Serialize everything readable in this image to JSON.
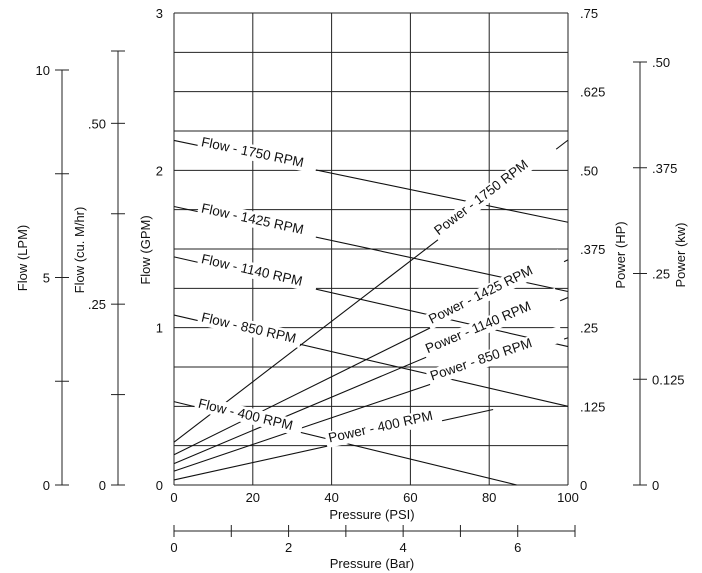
{
  "chart_data": {
    "type": "line",
    "xlabel": "Pressure (PSI)",
    "x2label": "Pressure (Bar)",
    "xlim": [
      0,
      100
    ],
    "x_ticks": [
      "0",
      "20",
      "40",
      "60",
      "80",
      "100"
    ],
    "x2lim": [
      0,
      7
    ],
    "x2_ticks": [
      "0",
      "2",
      "4",
      "6"
    ],
    "ylabel": "Flow (GPM)",
    "ylim": [
      0,
      3
    ],
    "y_ticks": [
      "0",
      "1",
      "2",
      "3"
    ],
    "left_axes": [
      {
        "label": "Flow (LPM)",
        "ticks": [
          "0",
          "5",
          "10"
        ]
      },
      {
        "label": "Flow (cu. M/hr)",
        "ticks": [
          "0",
          ".25",
          ".50"
        ]
      }
    ],
    "right_axes": [
      {
        "label": "Power (HP)",
        "ticks": [
          "0",
          ".125",
          ".25",
          ".375",
          ".50",
          ".625",
          ".75"
        ]
      },
      {
        "label": "Power (kw)",
        "ticks": [
          "0",
          "0.125",
          ".25",
          ".375",
          ".50"
        ]
      }
    ],
    "power_lim": [
      0,
      0.75
    ],
    "grid": true,
    "flow_series": [
      {
        "name": "Flow - 1750 RPM",
        "x": [
          0,
          100
        ],
        "y": [
          2.19,
          1.67
        ]
      },
      {
        "name": "Flow - 1425 RPM",
        "x": [
          0,
          100
        ],
        "y": [
          1.77,
          1.23
        ]
      },
      {
        "name": "Flow - 1140 RPM",
        "x": [
          0,
          100
        ],
        "y": [
          1.45,
          0.88
        ]
      },
      {
        "name": "Flow - 850 RPM",
        "x": [
          0,
          100
        ],
        "y": [
          1.08,
          0.5
        ]
      },
      {
        "name": "Flow - 400 RPM",
        "x": [
          0,
          87
        ],
        "y": [
          0.53,
          0.0
        ]
      }
    ],
    "power_series": [
      {
        "name": "Power - 1750 RPM",
        "x": [
          0,
          100
        ],
        "y": [
          0.068,
          0.548
        ]
      },
      {
        "name": "Power - 1425 RPM",
        "x": [
          0,
          100
        ],
        "y": [
          0.048,
          0.358
        ]
      },
      {
        "name": "Power - 1140 RPM",
        "x": [
          0,
          100
        ],
        "y": [
          0.034,
          0.298
        ]
      },
      {
        "name": "Power - 850 RPM",
        "x": [
          0,
          100
        ],
        "y": [
          0.022,
          0.234
        ]
      },
      {
        "name": "Power - 400 RPM",
        "x": [
          0,
          81
        ],
        "y": [
          0.008,
          0.12
        ]
      }
    ]
  }
}
